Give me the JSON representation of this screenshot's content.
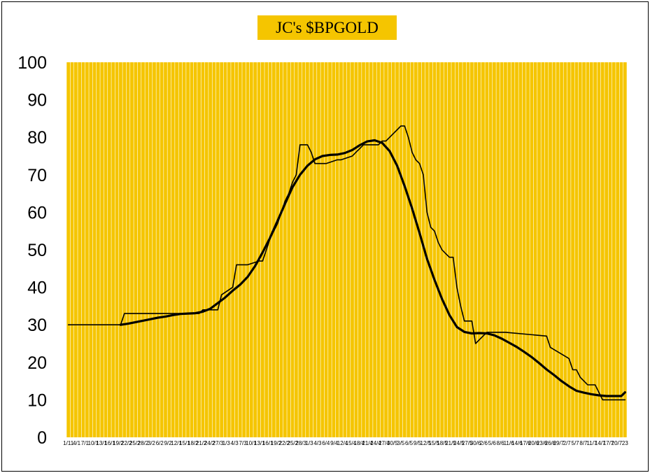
{
  "chart_data": {
    "type": "line",
    "title": "JC's $BPGOLD",
    "xlabel": "",
    "ylabel": "",
    "ylim": [
      0,
      100
    ],
    "yticks": [
      0,
      10,
      20,
      30,
      40,
      50,
      60,
      70,
      80,
      90,
      100
    ],
    "x_tick_labels": [
      "1/11",
      "4/1",
      "7/1",
      "10/1",
      "13/1",
      "16/1",
      "19/2",
      "22/2",
      "25/2",
      "28/2",
      "3/2",
      "6/2",
      "9/2",
      "12/1",
      "15/1",
      "18/2",
      "21/2",
      "24/2",
      "27/3",
      "1/3",
      "4/3",
      "7/3",
      "10/1",
      "13/1",
      "16/1",
      "19/2",
      "22/2",
      "25/2",
      "28/3",
      "1/3",
      "4/3",
      "6/4",
      "9/4",
      "12/4",
      "15/4",
      "18/4",
      "21/4",
      "24/4",
      "27/4",
      "30/5",
      "3/5",
      "6/5",
      "9/5",
      "12/5",
      "15/5",
      "18/5",
      "21/5",
      "24/5",
      "27/5",
      "30/6",
      "2/6",
      "5/6",
      "8/6",
      "11/6",
      "14/6",
      "17/6",
      "20/6",
      "23/6",
      "26/6",
      "29/7",
      "2/7",
      "5/7",
      "8/7",
      "11/7",
      "14/7",
      "17/7",
      "20/7",
      "23"
    ],
    "grid": true,
    "background": "#f5c500",
    "grid_color": "#ffffff",
    "x_count": 150,
    "series": [
      {
        "role": "raw",
        "color": "#000000",
        "width": 1.6,
        "x": [
          0,
          14,
          15,
          35,
          36,
          40,
          41,
          44,
          45,
          47,
          48,
          51,
          52,
          53,
          54,
          55,
          56,
          57,
          58,
          59,
          60,
          61,
          62,
          64,
          65,
          66,
          67,
          68,
          69,
          72,
          73,
          76,
          77,
          78,
          79,
          80,
          81,
          82,
          83,
          84,
          85,
          86,
          87,
          88,
          89,
          90,
          91,
          92,
          93,
          94,
          95,
          96,
          97,
          98,
          99,
          100,
          101,
          102,
          103,
          104,
          105,
          106,
          107,
          108,
          109,
          110,
          111,
          112,
          113,
          114,
          115,
          116,
          117,
          128,
          129,
          134,
          135,
          136,
          137,
          138,
          139,
          140,
          141,
          142,
          143,
          144,
          145,
          146,
          147,
          148,
          149
        ],
        "y": [
          30,
          30,
          33,
          33,
          34,
          34,
          38,
          40,
          46,
          46,
          46,
          47,
          47,
          50,
          53,
          55,
          57,
          60,
          63,
          65,
          68,
          70,
          78,
          78,
          76,
          73,
          73,
          73,
          73,
          74,
          74,
          75,
          76,
          77,
          78,
          78,
          78,
          78,
          78,
          79,
          79,
          80,
          81,
          82,
          83,
          83,
          80,
          76,
          74,
          73,
          70,
          60,
          56,
          55,
          52,
          50,
          49,
          48,
          48,
          40,
          35,
          31,
          31,
          31,
          25,
          26,
          27,
          28,
          28,
          28,
          28,
          28,
          28,
          27,
          24,
          21,
          18,
          18,
          16,
          15,
          14,
          14,
          14,
          12,
          10,
          10,
          10,
          10,
          10,
          10,
          10
        ]
      },
      {
        "role": "smoothed",
        "color": "#000000",
        "width": 3.2,
        "x": [
          14,
          16,
          18,
          20,
          22,
          24,
          26,
          28,
          30,
          32,
          34,
          36,
          38,
          40,
          42,
          44,
          46,
          48,
          50,
          52,
          54,
          56,
          58,
          60,
          62,
          64,
          66,
          68,
          70,
          72,
          74,
          76,
          78,
          80,
          82,
          84,
          86,
          88,
          90,
          92,
          94,
          96,
          98,
          100,
          102,
          104,
          106,
          108,
          110,
          112,
          114,
          116,
          118,
          120,
          122,
          124,
          126,
          128,
          130,
          132,
          134,
          136,
          138,
          140,
          142,
          144,
          146,
          148,
          149
        ],
        "y": [
          30,
          30.3,
          30.7,
          31.1,
          31.5,
          31.9,
          32.2,
          32.6,
          32.9,
          33,
          33.1,
          33.5,
          34.3,
          35.8,
          37.3,
          39.1,
          40.7,
          42.8,
          45.7,
          49.3,
          53.2,
          57.7,
          62.3,
          66.7,
          70,
          72.4,
          74.1,
          75,
          75.3,
          75.4,
          75.8,
          76.6,
          77.9,
          78.9,
          79.2,
          78.5,
          76.3,
          72.4,
          67,
          61,
          54.5,
          47.6,
          42,
          36.9,
          32.6,
          29.4,
          28.1,
          27.7,
          27.8,
          27.7,
          27.2,
          26.3,
          25.2,
          24.1,
          22.8,
          21.4,
          19.8,
          18.1,
          16.6,
          15,
          13.6,
          12.4,
          11.9,
          11.5,
          11.2,
          11,
          11,
          11,
          12
        ]
      }
    ]
  }
}
